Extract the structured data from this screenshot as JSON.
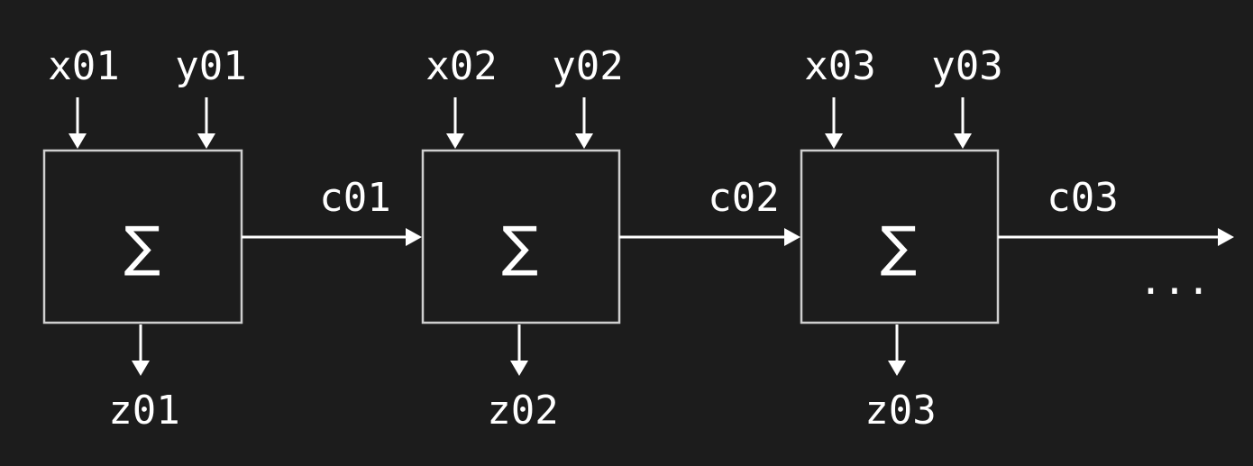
{
  "diagram": {
    "blocks": [
      {
        "symbol": "∑",
        "inputs": [
          "x01",
          "y01"
        ],
        "output": "z01",
        "carry": "c01"
      },
      {
        "symbol": "∑",
        "inputs": [
          "x02",
          "y02"
        ],
        "output": "z02",
        "carry": "c02"
      },
      {
        "symbol": "∑",
        "inputs": [
          "x03",
          "y03"
        ],
        "output": "z03",
        "carry": "c03"
      }
    ],
    "continuation": "..."
  },
  "colors": {
    "background": "#1c1c1c",
    "box_stroke": "#cfcfcf",
    "foreground": "#ffffff"
  }
}
